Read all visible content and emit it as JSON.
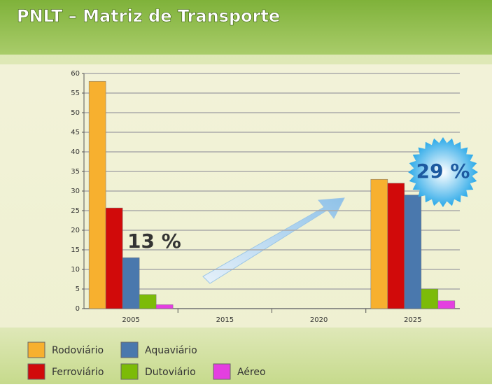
{
  "chart_data": {
    "type": "bar",
    "title": "PNLT – Matriz de Transporte",
    "categories": [
      "2005",
      "2015",
      "2020",
      "2025"
    ],
    "series": [
      {
        "name": "Rodoviário",
        "color": "#f7b02f",
        "values": [
          58,
          null,
          null,
          33
        ]
      },
      {
        "name": "Ferroviário",
        "color": "#d10a0a",
        "values": [
          25.7,
          null,
          null,
          32
        ]
      },
      {
        "name": "Aquaviário",
        "color": "#4a78ad",
        "values": [
          13,
          null,
          null,
          29
        ]
      },
      {
        "name": "Dutoviário",
        "color": "#7cbb08",
        "values": [
          3.6,
          null,
          null,
          5
        ]
      },
      {
        "name": "Aéreo",
        "color": "#e43fe0",
        "values": [
          1,
          null,
          null,
          2
        ]
      }
    ],
    "annotations": [
      "13 %",
      "29 %"
    ],
    "ylim": [
      0,
      60
    ],
    "yticks": [
      0,
      5,
      10,
      15,
      20,
      25,
      30,
      35,
      40,
      45,
      50,
      55,
      60
    ],
    "grid": true
  }
}
